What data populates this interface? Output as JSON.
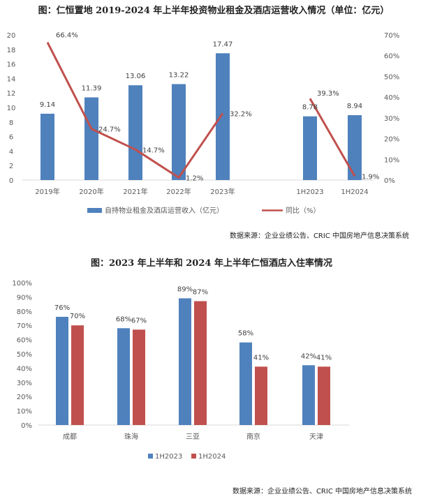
{
  "chart_data": [
    {
      "type": "bar",
      "title": "图：仁恒置地 2019-2024 年上半年投资物业租金及酒店运营收入情况（单位：亿元）",
      "categories": [
        "2019年",
        "2020年",
        "2021年",
        "2022年",
        "2023年",
        "1H2023",
        "1H2024"
      ],
      "ylim": [
        0,
        20
      ],
      "y_ticks": [
        "0",
        "2",
        "4",
        "6",
        "8",
        "10",
        "12",
        "14",
        "16",
        "18",
        "20"
      ],
      "y2lim": [
        0,
        70
      ],
      "y2_ticks": [
        "0%",
        "10%",
        "20%",
        "30%",
        "40%",
        "50%",
        "60%",
        "70%"
      ],
      "series": [
        {
          "name": "自持物业租金及酒店运营收入（亿元）",
          "kind": "bar",
          "color": "#4f81bd",
          "values": [
            9.14,
            11.39,
            13.06,
            13.22,
            17.47,
            8.78,
            8.94
          ],
          "labels": [
            "9.14",
            "11.39",
            "13.06",
            "13.22",
            "17.47",
            "8.78",
            "8.94"
          ]
        },
        {
          "name": "同比（%）",
          "kind": "line",
          "axis": "secondary",
          "color": "#c0504d",
          "segments": [
            [
              0,
              1,
              2,
              3,
              4
            ],
            [
              5,
              6
            ]
          ],
          "values": [
            66.4,
            24.7,
            14.7,
            1.2,
            32.2,
            39.3,
            1.9
          ],
          "labels": [
            "66.4%",
            "24.7%",
            "14.7%",
            "1.2%",
            "32.2%",
            "39.3%",
            "1.9%"
          ]
        }
      ],
      "legend_position": "bottom",
      "source": "数据来源：企业业绩公告、CRIC 中国房地产信息决策系统"
    },
    {
      "type": "bar",
      "title": "图：2023 年上半年和 2024 年上半年仁恒酒店入住率情况",
      "categories": [
        "成都",
        "珠海",
        "三亚",
        "南京",
        "天津"
      ],
      "ylim": [
        0,
        100
      ],
      "y_ticks": [
        "0%",
        "10%",
        "20%",
        "30%",
        "40%",
        "50%",
        "60%",
        "70%",
        "80%",
        "90%",
        "100%"
      ],
      "series": [
        {
          "name": "1H2023",
          "color": "#4f81bd",
          "values": [
            76,
            68,
            89,
            58,
            42
          ],
          "labels": [
            "76%",
            "68%",
            "89%",
            "58%",
            "42%"
          ]
        },
        {
          "name": "1H2024",
          "color": "#c0504d",
          "values": [
            70,
            67,
            87,
            41,
            41
          ],
          "labels": [
            "70%",
            "67%",
            "87%",
            "41%",
            "41%"
          ]
        }
      ],
      "legend_position": "bottom",
      "source": "数据来源：企业业绩公告、CRIC 中国房地产信息决策系统"
    }
  ]
}
